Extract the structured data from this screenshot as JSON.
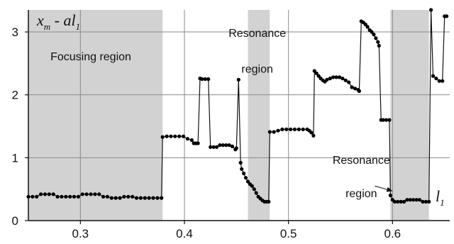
{
  "chart_data": {
    "type": "line",
    "ylabel_parts": {
      "x": "x",
      "x_sub": "m",
      "rest": " - al",
      "rest_sub": "1"
    },
    "xlabel_parts": {
      "main": "l",
      "sub": "1"
    },
    "xlim": [
      0.25,
      0.655
    ],
    "ylim": [
      0,
      3.35
    ],
    "xticks": [
      0.3,
      0.4,
      0.5,
      0.6
    ],
    "xtick_labels": [
      "0.3",
      "0.4",
      "0.5",
      "0.6"
    ],
    "yticks": [
      0,
      1,
      2,
      3
    ],
    "ytick_labels": [
      "0",
      "1",
      "2",
      "3"
    ],
    "grid": true,
    "shaded_regions": [
      {
        "x_range": [
          0.25,
          0.379
        ],
        "label": "Focusing region"
      },
      {
        "x_range": [
          0.461,
          0.482
        ],
        "label": "Resonance\nregion"
      },
      {
        "x_range": [
          0.598,
          0.635
        ],
        "label": "Resonance\nregion"
      }
    ],
    "annotations": [
      {
        "text": "Focusing region",
        "x": 0.31,
        "y": 2.55
      },
      {
        "text": "Resonance",
        "x": 0.47,
        "y": 2.92
      },
      {
        "text": "region",
        "x": 0.47,
        "y": 2.35
      },
      {
        "text": "Resonance",
        "x": 0.57,
        "y": 0.9
      },
      {
        "text": "region",
        "x": 0.57,
        "y": 0.37
      }
    ],
    "arrow": {
      "from": [
        0.583,
        0.55
      ],
      "to": [
        0.6,
        0.47
      ]
    },
    "series": [
      {
        "x": [
          0.25,
          0.254,
          0.258,
          0.262,
          0.266,
          0.27,
          0.274,
          0.278,
          0.282,
          0.286,
          0.29,
          0.294,
          0.298,
          0.302,
          0.306,
          0.31,
          0.314,
          0.318,
          0.322,
          0.326,
          0.33,
          0.334,
          0.338,
          0.342,
          0.346,
          0.35,
          0.354,
          0.358,
          0.362,
          0.366,
          0.37,
          0.374,
          0.378,
          0.379,
          0.383,
          0.387,
          0.391,
          0.395,
          0.399,
          0.403,
          0.407,
          0.409,
          0.411,
          0.413,
          0.415,
          0.417,
          0.42,
          0.423,
          0.425,
          0.428,
          0.431,
          0.434,
          0.437,
          0.44,
          0.443,
          0.446,
          0.449,
          0.45,
          0.452,
          0.454,
          0.455,
          0.457,
          0.459,
          0.461,
          0.463,
          0.465,
          0.467,
          0.469,
          0.471,
          0.473,
          0.475,
          0.477,
          0.479,
          0.481,
          0.482,
          0.486,
          0.49,
          0.494,
          0.498,
          0.502,
          0.506,
          0.51,
          0.514,
          0.518,
          0.52,
          0.522,
          0.524,
          0.525,
          0.527,
          0.529,
          0.531,
          0.533,
          0.535,
          0.537,
          0.54,
          0.543,
          0.546,
          0.549,
          0.552,
          0.555,
          0.558,
          0.561,
          0.564,
          0.567,
          0.568,
          0.57,
          0.572,
          0.574,
          0.576,
          0.578,
          0.58,
          0.582,
          0.584,
          0.586,
          0.587,
          0.589,
          0.591,
          0.594,
          0.597,
          0.598,
          0.6,
          0.602,
          0.605,
          0.608,
          0.611,
          0.614,
          0.617,
          0.62,
          0.623,
          0.626,
          0.629,
          0.632,
          0.635,
          0.637,
          0.639,
          0.642,
          0.645,
          0.648,
          0.65,
          0.652
        ],
        "y": [
          0.38,
          0.38,
          0.38,
          0.42,
          0.42,
          0.42,
          0.42,
          0.38,
          0.38,
          0.38,
          0.38,
          0.38,
          0.38,
          0.42,
          0.42,
          0.42,
          0.42,
          0.42,
          0.38,
          0.38,
          0.36,
          0.36,
          0.36,
          0.38,
          0.38,
          0.38,
          0.36,
          0.36,
          0.36,
          0.36,
          0.36,
          0.36,
          0.36,
          1.33,
          1.34,
          1.34,
          1.34,
          1.34,
          1.34,
          1.3,
          1.28,
          1.23,
          1.23,
          1.23,
          2.26,
          2.25,
          2.25,
          2.25,
          1.17,
          1.17,
          1.17,
          1.2,
          1.2,
          1.2,
          1.2,
          1.18,
          1.13,
          1.15,
          2.24,
          0.92,
          0.82,
          0.75,
          0.68,
          0.62,
          0.58,
          0.55,
          0.5,
          0.44,
          0.38,
          0.35,
          0.32,
          0.3,
          0.3,
          0.3,
          1.41,
          1.41,
          1.43,
          1.45,
          1.45,
          1.45,
          1.45,
          1.45,
          1.45,
          1.45,
          1.43,
          1.4,
          1.35,
          2.38,
          2.34,
          2.3,
          2.26,
          2.23,
          2.21,
          2.24,
          2.26,
          2.28,
          2.28,
          2.28,
          2.26,
          2.23,
          2.2,
          2.12,
          2.1,
          2.08,
          2.06,
          3.17,
          3.15,
          3.12,
          3.08,
          3.03,
          3.0,
          2.96,
          2.9,
          2.84,
          2.78,
          1.6,
          1.6,
          1.6,
          1.6,
          0.4,
          0.33,
          0.3,
          0.3,
          0.3,
          0.3,
          0.33,
          0.33,
          0.33,
          0.33,
          0.33,
          0.3,
          0.3,
          0.3,
          3.35,
          2.3,
          2.26,
          2.22,
          2.22,
          3.25,
          3.25
        ]
      }
    ]
  },
  "colors": {
    "shade": "#d2d2d2",
    "grid": "#8a8a8a",
    "line": "#111111",
    "marker": "#000000"
  }
}
